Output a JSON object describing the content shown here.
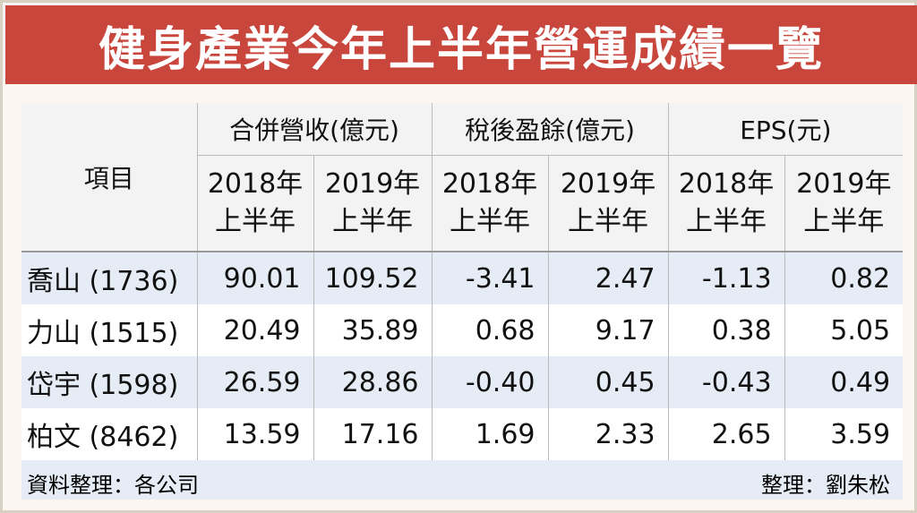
{
  "title": "健身產業今年上半年營運成績一覽",
  "table": {
    "item_header": "項目",
    "groups": [
      "合併營收(億元)",
      "稅後盈餘(億元)",
      "EPS(元)"
    ],
    "period_line1_a": "2018年",
    "period_line1_b": "2019年",
    "period_line2": "上半年",
    "rows": [
      {
        "name": "喬山 (1736)",
        "values": [
          "90.01",
          "109.52",
          "-3.41",
          "2.47",
          "-1.13",
          "0.82"
        ]
      },
      {
        "name": "力山 (1515)",
        "values": [
          "20.49",
          "35.89",
          "0.68",
          "9.17",
          "0.38",
          "5.05"
        ]
      },
      {
        "name": "岱宇 (1598)",
        "values": [
          "26.59",
          "28.86",
          "-0.40",
          "0.45",
          "-0.43",
          "0.49"
        ]
      },
      {
        "name": "柏文 (8462)",
        "values": [
          "13.59",
          "17.16",
          "1.69",
          "2.33",
          "2.65",
          "3.59"
        ]
      }
    ]
  },
  "footer": {
    "source": "資料整理：各公司",
    "editor": "整理：劉朱松"
  },
  "colors": {
    "title_bg": "#c9463d",
    "stripe": "#e6ecf6",
    "frame_bg": "#fbf6ef"
  }
}
